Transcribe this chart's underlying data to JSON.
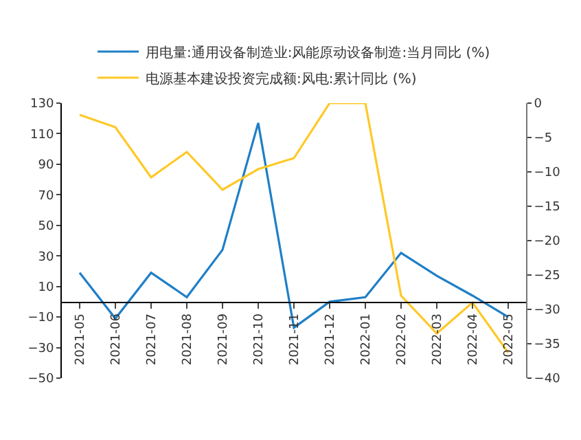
{
  "chart_data": {
    "type": "line",
    "categories": [
      "2021-05",
      "2021-06",
      "2021-07",
      "2021-08",
      "2021-09",
      "2021-10",
      "2021-11",
      "2021-12",
      "2022-01",
      "2022-02",
      "2022-03",
      "2022-04",
      "2022-05"
    ],
    "series": [
      {
        "name": "用电量:通用设备制造业:风能原动设备制造:当月同比 (%)",
        "color": "#1f7fc7",
        "values": [
          19,
          -11,
          19,
          3,
          34,
          117,
          -17,
          0,
          3,
          32,
          17,
          4,
          -10
        ]
      },
      {
        "name": "电源基本建设投资完成额:风电:累计同比 (%)",
        "color": "#ffc826",
        "axis": "y2",
        "values": [
          -1.7,
          -3.5,
          -10.8,
          -7.1,
          -12.6,
          -9.6,
          -8.0,
          0,
          0,
          -28,
          -33.5,
          -29,
          -36.3
        ]
      }
    ],
    "ylim": [
      -50,
      130
    ],
    "yticks": [
      -50,
      -30,
      -10,
      10,
      30,
      50,
      70,
      90,
      110,
      130
    ],
    "y2lim": [
      -40,
      0
    ],
    "y2ticks": [
      -40,
      -35,
      -30,
      -25,
      -20,
      -15,
      -10,
      -5,
      0
    ],
    "legend": "top",
    "marker": "none",
    "line_style": "solid"
  }
}
